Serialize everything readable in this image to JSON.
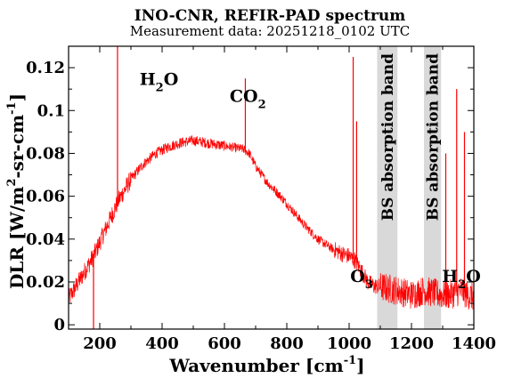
{
  "chart_data": {
    "type": "line",
    "title": "INO-CNR, REFIR-PAD spectrum",
    "subtitle": "Measurement data: 20251218_0102 UTC",
    "xlabel": {
      "main": "Wavenumber [cm",
      "sup": "-1",
      "tail": "]"
    },
    "ylabel": {
      "main": "DLR [W/m",
      "sup1": "2",
      "mid": "-sr-cm",
      "sup2": "-1",
      "tail": "]"
    },
    "xlim": [
      100,
      1400
    ],
    "ylim": [
      -0.002,
      0.13
    ],
    "xticks": [
      200,
      400,
      600,
      800,
      1000,
      1200,
      1400
    ],
    "xtick_labels": [
      "200",
      "400",
      "600",
      "800",
      "1000",
      "1200",
      "1400"
    ],
    "yticks": [
      0,
      0.02,
      0.04,
      0.06,
      0.08,
      0.1,
      0.12
    ],
    "ytick_labels": [
      "0",
      "0.02",
      "0.04",
      "0.06",
      "0.08",
      "0.1",
      "0.12"
    ],
    "series_color": "#ff0000",
    "band_color": "#d9d9d9",
    "bands": [
      {
        "label": "BS absorption band",
        "x0": 1090,
        "x1": 1155
      },
      {
        "label": "BS absorption band",
        "x0": 1240,
        "x1": 1295
      }
    ],
    "annotations": [
      {
        "id": "h2o-left",
        "text": "H",
        "sub": "2",
        "tail": "O",
        "x": 390,
        "y": 0.112
      },
      {
        "id": "co2",
        "text": "CO",
        "sub": "2",
        "tail": "",
        "x": 675,
        "y": 0.104
      },
      {
        "id": "o3",
        "text": "O",
        "sub": "3",
        "tail": "",
        "x": 1040,
        "y": 0.02
      },
      {
        "id": "h2o-right",
        "text": "H",
        "sub": "2",
        "tail": "O",
        "x": 1360,
        "y": 0.02
      }
    ],
    "envelope": {
      "x": [
        100,
        140,
        180,
        220,
        260,
        300,
        340,
        380,
        420,
        460,
        500,
        540,
        580,
        620,
        660,
        680,
        700,
        740,
        780,
        820,
        860,
        900,
        940,
        980,
        1000,
        1020,
        1040,
        1060,
        1080,
        1090,
        1155,
        1200,
        1240,
        1295,
        1320,
        1340,
        1360,
        1380,
        1400
      ],
      "y": [
        0.012,
        0.022,
        0.032,
        0.045,
        0.058,
        0.068,
        0.075,
        0.08,
        0.083,
        0.085,
        0.086,
        0.085,
        0.084,
        0.083,
        0.082,
        0.08,
        0.074,
        0.066,
        0.06,
        0.053,
        0.046,
        0.04,
        0.036,
        0.033,
        0.032,
        0.03,
        0.025,
        0.02,
        0.018,
        0.018,
        0.016,
        0.014,
        0.016,
        0.014,
        0.014,
        0.015,
        0.016,
        0.014,
        0.013
      ]
    },
    "spikes": [
      {
        "x": 180,
        "y": -0.002
      },
      {
        "x": 257,
        "y": 0.13
      },
      {
        "x": 667,
        "y": 0.115
      },
      {
        "x": 1013,
        "y": 0.125
      },
      {
        "x": 1024,
        "y": 0.095
      },
      {
        "x": 1310,
        "y": 0.08
      },
      {
        "x": 1345,
        "y": 0.11
      },
      {
        "x": 1370,
        "y": 0.09
      }
    ],
    "legend": "none",
    "grid": false
  }
}
